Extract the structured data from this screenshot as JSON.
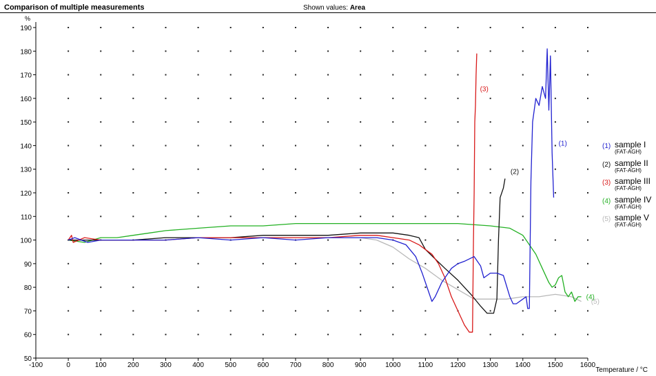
{
  "header": {
    "title": "Comparison of multiple measurements",
    "shown_prefix": "Shown values:",
    "shown_value": "Area"
  },
  "chart_data": {
    "type": "line",
    "title": "Comparison of multiple measurements",
    "xlabel": "Temperature / °C",
    "ylabel": "%",
    "xlim": [
      -100,
      1600
    ],
    "ylim": [
      50,
      190
    ],
    "xticks": [
      -100,
      0,
      100,
      200,
      300,
      400,
      500,
      600,
      700,
      800,
      900,
      1000,
      1100,
      1200,
      1300,
      1400,
      1500,
      1600
    ],
    "yticks": [
      50,
      60,
      70,
      80,
      90,
      100,
      110,
      120,
      130,
      140,
      150,
      160,
      170,
      180,
      190
    ],
    "grid": "dotted",
    "legend_position": "right",
    "series": [
      {
        "name": "sample I",
        "sub": "(FAT-AGH)",
        "label": "(1)",
        "color": "#2020d0",
        "x": [
          0,
          20,
          60,
          100,
          200,
          300,
          400,
          500,
          600,
          700,
          800,
          900,
          950,
          1000,
          1040,
          1070,
          1090,
          1110,
          1120,
          1130,
          1150,
          1180,
          1200,
          1220,
          1250,
          1270,
          1280,
          1300,
          1320,
          1340,
          1360,
          1370,
          1380,
          1400,
          1410,
          1415,
          1420,
          1425,
          1430,
          1440,
          1450,
          1460,
          1470,
          1475,
          1480,
          1485,
          1490,
          1495
        ],
        "y": [
          100,
          101,
          99,
          100,
          100,
          100,
          101,
          100,
          101,
          100,
          101,
          101,
          101,
          100,
          98,
          93,
          86,
          78,
          74,
          76,
          82,
          88,
          90,
          91,
          93,
          89,
          84,
          86,
          86,
          85,
          76,
          73,
          73,
          75,
          76,
          71,
          71,
          125,
          150,
          160,
          157,
          165,
          160,
          181,
          155,
          178,
          137,
          118
        ],
        "label_at": [
          1510,
          140
        ]
      },
      {
        "name": "sample II",
        "sub": "(FAT-AGH)",
        "label": "(2)",
        "color": "#111111",
        "x": [
          0,
          100,
          200,
          300,
          400,
          500,
          600,
          700,
          800,
          900,
          950,
          1000,
          1050,
          1080,
          1100,
          1130,
          1160,
          1200,
          1240,
          1270,
          1290,
          1310,
          1320,
          1325,
          1330,
          1340,
          1345
        ],
        "y": [
          100,
          100,
          100,
          101,
          101,
          101,
          102,
          102,
          102,
          103,
          103,
          103,
          102,
          101,
          96,
          92,
          88,
          83,
          77,
          72,
          69,
          69,
          75,
          100,
          118,
          122,
          126
        ],
        "label_at": [
          1362,
          128
        ]
      },
      {
        "name": "sample III",
        "sub": "(FAT-AGH)",
        "label": "(3)",
        "color": "#d81818",
        "x": [
          0,
          10,
          15,
          50,
          100,
          200,
          300,
          400,
          500,
          600,
          700,
          800,
          900,
          950,
          1000,
          1050,
          1080,
          1100,
          1120,
          1140,
          1160,
          1180,
          1200,
          1220,
          1235,
          1245,
          1248,
          1250,
          1252,
          1254,
          1256,
          1258
        ],
        "y": [
          100,
          102,
          99,
          101,
          100,
          100,
          100,
          101,
          101,
          101,
          101,
          101,
          102,
          102,
          101,
          100,
          98,
          96,
          94,
          90,
          84,
          76,
          70,
          64,
          61,
          61,
          100,
          120,
          150,
          157,
          170,
          179
        ],
        "label_at": [
          1268,
          163
        ]
      },
      {
        "name": "sample IV",
        "sub": "(FAT-AGH)",
        "label": "(4)",
        "color": "#22b022",
        "x": [
          0,
          50,
          100,
          150,
          200,
          250,
          300,
          400,
          500,
          600,
          700,
          800,
          900,
          1000,
          1100,
          1200,
          1300,
          1360,
          1400,
          1420,
          1440,
          1460,
          1480,
          1490,
          1500,
          1510,
          1520,
          1530,
          1540,
          1550,
          1560,
          1570,
          1580
        ],
        "y": [
          100,
          99,
          101,
          101,
          102,
          103,
          104,
          105,
          106,
          106,
          107,
          107,
          107,
          107,
          107,
          107,
          106,
          105,
          102,
          98,
          94,
          88,
          82,
          80,
          81,
          84,
          85,
          78,
          76,
          78,
          74,
          76,
          76
        ],
        "label_at": [
          1595,
          75
        ]
      },
      {
        "name": "sample V",
        "sub": "(FAT-AGH)",
        "label": "(5)",
        "color": "#b8b8b8",
        "x": [
          0,
          100,
          200,
          300,
          400,
          500,
          600,
          700,
          800,
          900,
          950,
          1000,
          1050,
          1100,
          1150,
          1200,
          1250,
          1300,
          1350,
          1400,
          1450,
          1500,
          1550,
          1580
        ],
        "y": [
          100,
          100,
          100,
          101,
          101,
          101,
          101,
          101,
          101,
          101,
          100,
          97,
          92,
          88,
          83,
          79,
          75,
          75,
          75,
          76,
          76,
          77,
          76,
          74
        ],
        "label_at": [
          1610,
          73
        ]
      }
    ]
  }
}
